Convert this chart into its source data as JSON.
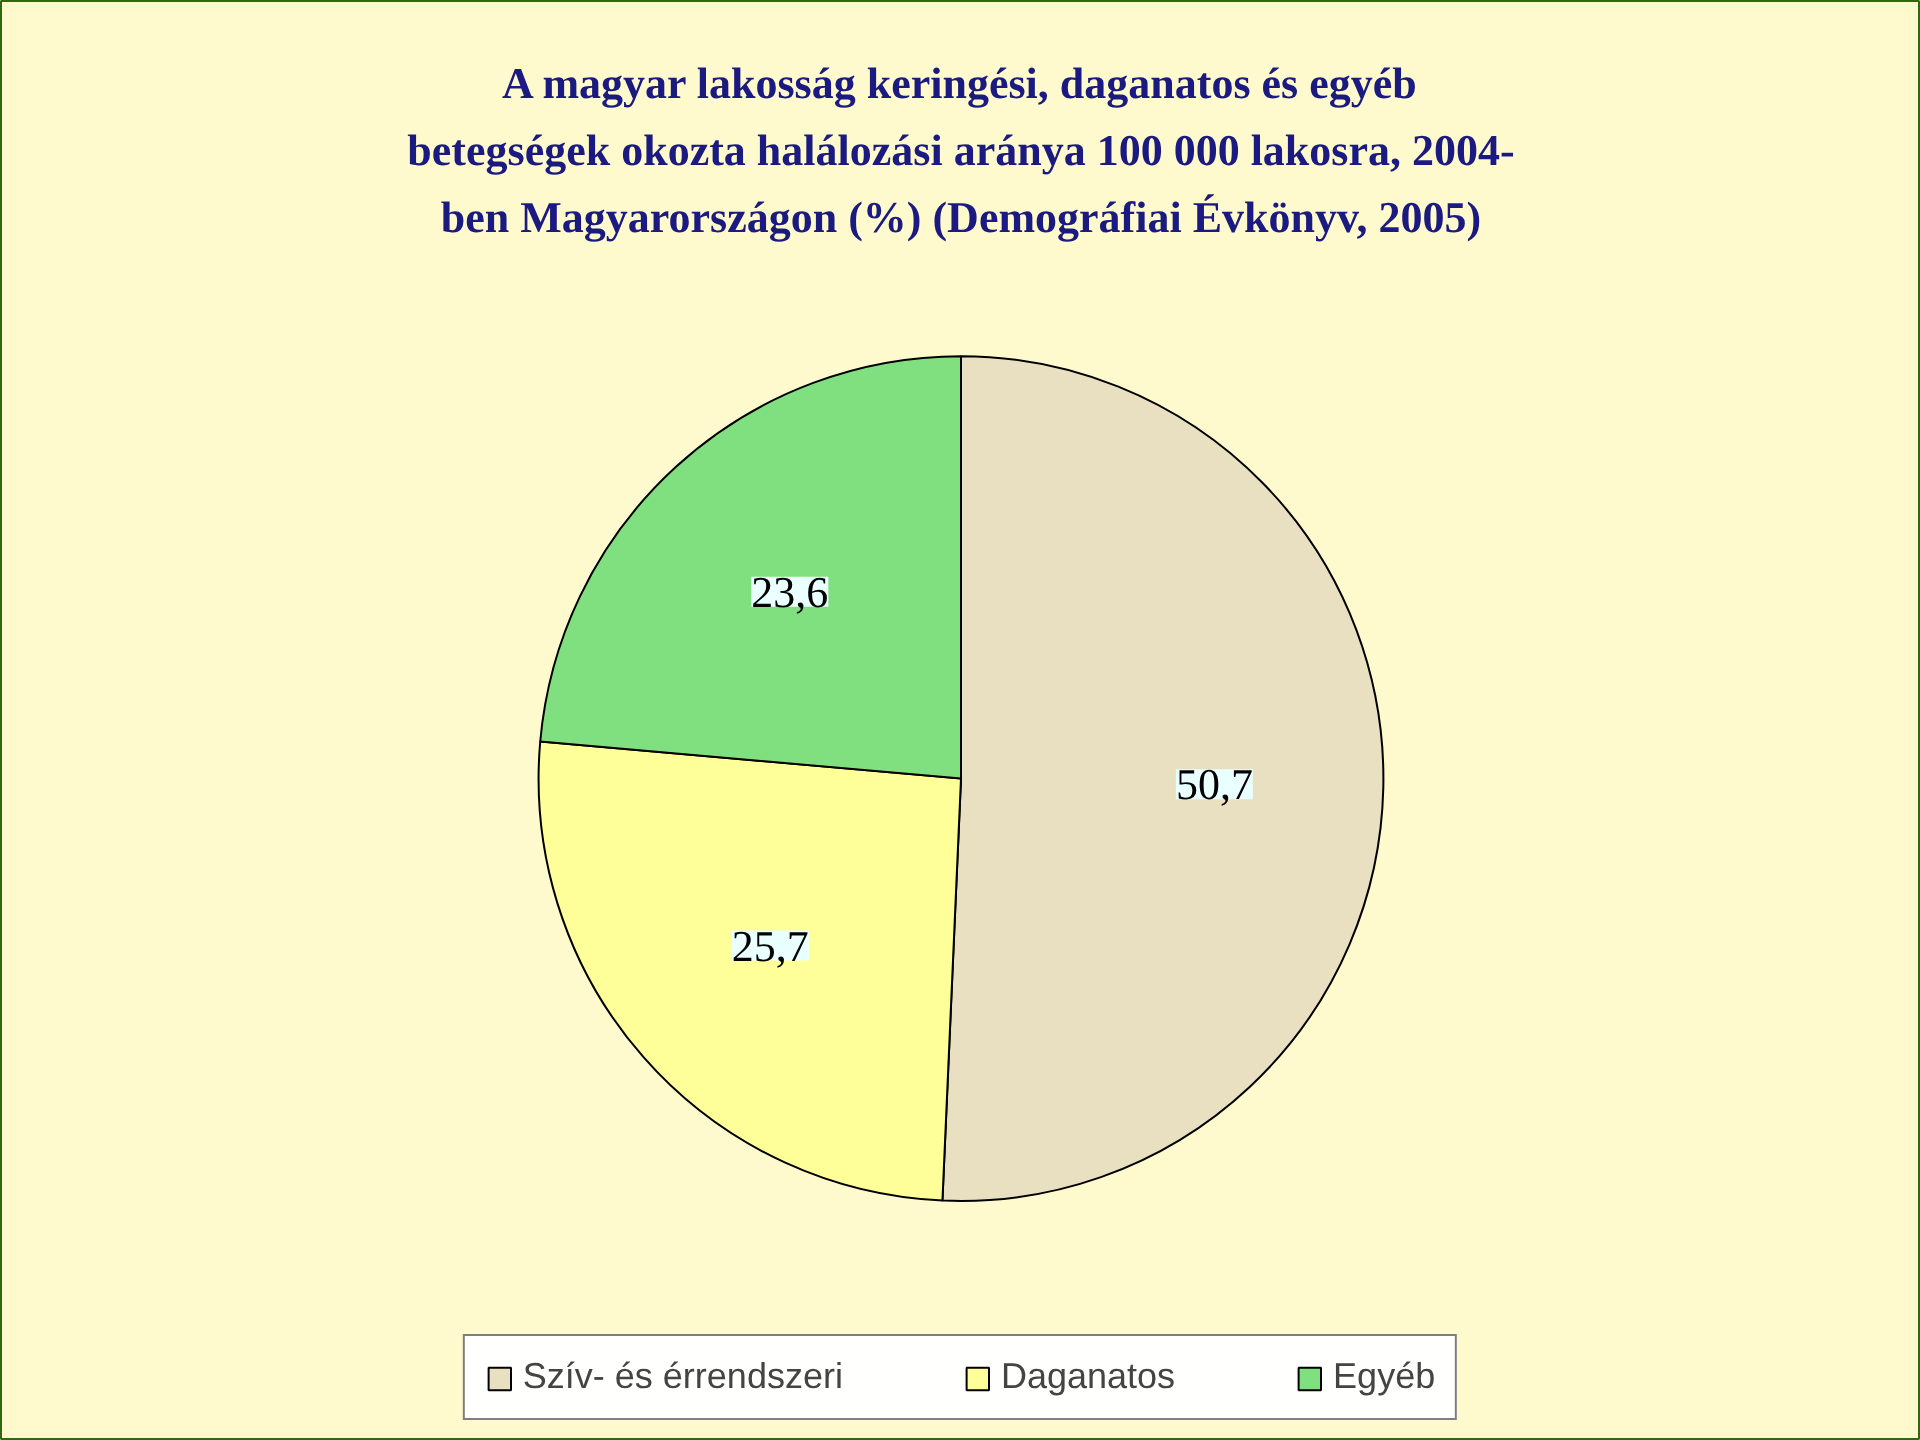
{
  "chart_data": {
    "type": "pie",
    "title": "A magyar lakosság keringési, daganatos és egyéb\nbetegségek okozta halálozási aránya 100 000 lakosra, 2004-\nben Magyarországon (%) (Demográfiai Évkönyv, 2005)",
    "categories": [
      "Szív- és érrendszeri",
      "Daganatos",
      "Egyéb"
    ],
    "values": [
      50.7,
      25.7,
      23.6
    ],
    "colors": [
      "#e8e0c0",
      "#ffff99",
      "#80e080"
    ],
    "value_labels": [
      "50,7",
      "25,7",
      "23,6"
    ],
    "legend": "bottom"
  }
}
